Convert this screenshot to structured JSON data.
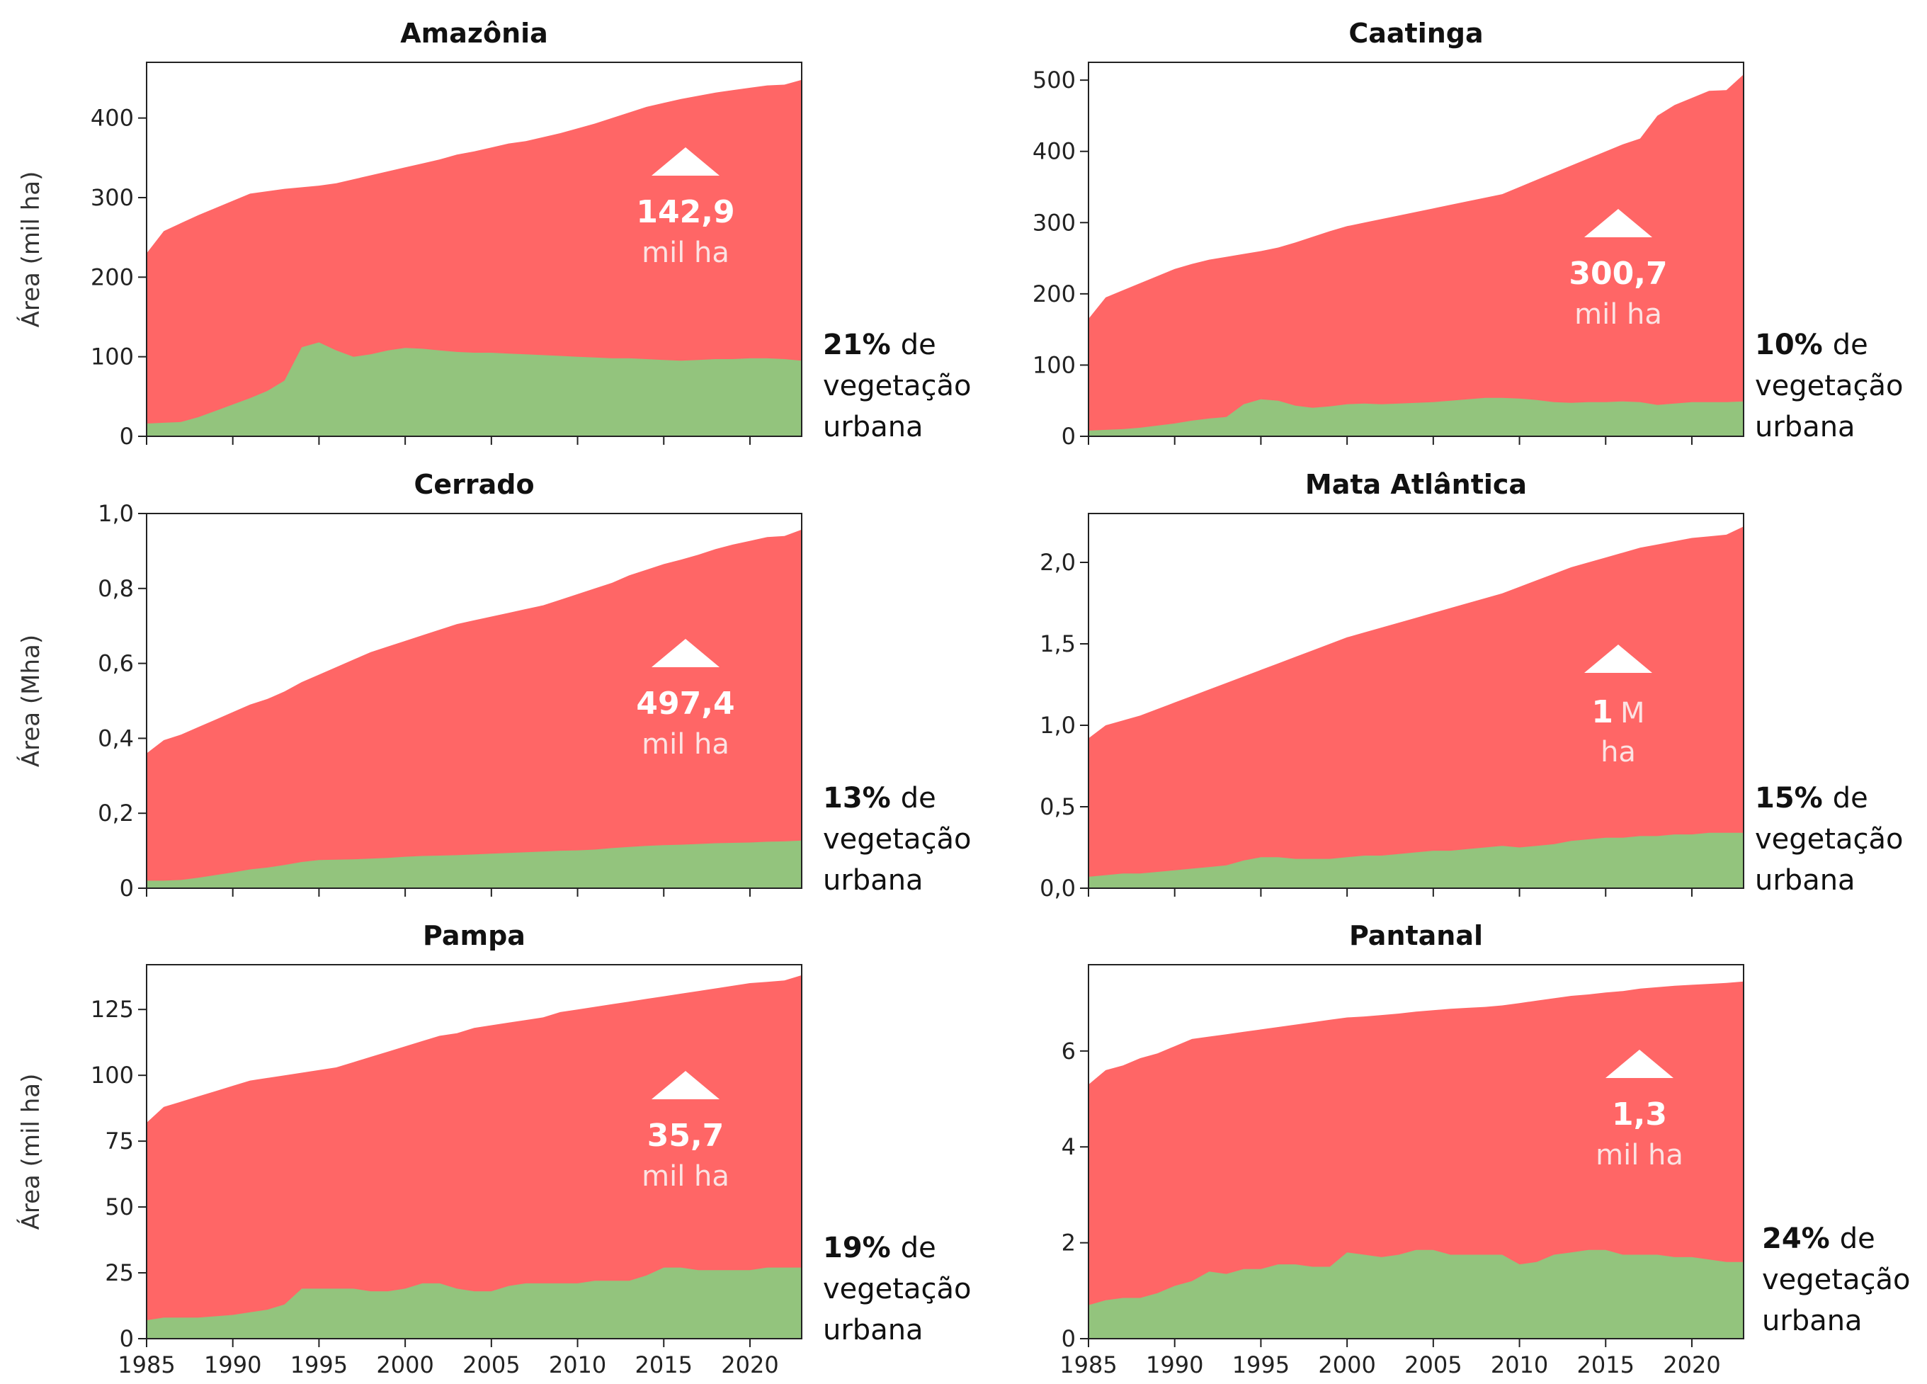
{
  "colors": {
    "total_area": "#ff6666",
    "urban_vegetation": "#93c47d",
    "axis": "#222222",
    "annotation": "#ffffff"
  },
  "chart_data": [
    {
      "type": "area",
      "title": "Amazônia",
      "ylabel": "Área (mil ha)",
      "x": [
        1985,
        1986,
        1987,
        1988,
        1989,
        1990,
        1991,
        1992,
        1993,
        1994,
        1995,
        1996,
        1997,
        1998,
        1999,
        2000,
        2001,
        2002,
        2003,
        2004,
        2005,
        2006,
        2007,
        2008,
        2009,
        2010,
        2011,
        2012,
        2013,
        2014,
        2015,
        2016,
        2017,
        2018,
        2019,
        2020,
        2021,
        2022,
        2023
      ],
      "xlim": [
        1985,
        2023
      ],
      "ylim": [
        0,
        470
      ],
      "yticks": [
        0,
        100,
        200,
        300,
        400
      ],
      "yticklabels": [
        "0",
        "100",
        "200",
        "300",
        "400"
      ],
      "show_xticklabels": false,
      "series": [
        {
          "values": [
            230,
            258,
            268,
            278,
            287,
            296,
            305,
            308,
            311,
            313,
            315,
            318,
            323,
            328,
            333,
            338,
            343,
            348,
            354,
            358,
            363,
            368,
            371,
            376,
            381,
            387,
            393,
            400,
            407,
            414,
            419,
            424,
            428,
            432,
            435,
            438,
            441,
            442,
            448
          ]
        },
        {
          "values": [
            16,
            17,
            18,
            24,
            32,
            40,
            48,
            57,
            70,
            112,
            118,
            108,
            100,
            103,
            108,
            111,
            110,
            108,
            106,
            105,
            105,
            104,
            103,
            102,
            101,
            100,
            99,
            98,
            98,
            97,
            96,
            95,
            96,
            97,
            97,
            98,
            98,
            97,
            95
          ]
        }
      ],
      "annotation": {
        "value": "142,9",
        "unit": "mil ha"
      },
      "share": {
        "pct": "21%",
        "line1": "de",
        "line2": "vegetação",
        "line3": "urbana"
      }
    },
    {
      "type": "area",
      "title": "Caatinga",
      "ylabel": "",
      "x": [
        1985,
        1986,
        1987,
        1988,
        1989,
        1990,
        1991,
        1992,
        1993,
        1994,
        1995,
        1996,
        1997,
        1998,
        1999,
        2000,
        2001,
        2002,
        2003,
        2004,
        2005,
        2006,
        2007,
        2008,
        2009,
        2010,
        2011,
        2012,
        2013,
        2014,
        2015,
        2016,
        2017,
        2018,
        2019,
        2020,
        2021,
        2022,
        2023
      ],
      "xlim": [
        1985,
        2023
      ],
      "ylim": [
        0,
        525
      ],
      "yticks": [
        0,
        100,
        200,
        300,
        400,
        500
      ],
      "yticklabels": [
        "0",
        "100",
        "200",
        "300",
        "400",
        "500"
      ],
      "show_xticklabels": false,
      "series": [
        {
          "values": [
            165,
            195,
            205,
            215,
            225,
            235,
            242,
            248,
            252,
            256,
            260,
            265,
            272,
            280,
            288,
            295,
            300,
            305,
            310,
            315,
            320,
            325,
            330,
            335,
            340,
            350,
            360,
            370,
            380,
            390,
            400,
            410,
            418,
            450,
            465,
            475,
            485,
            486,
            508
          ]
        },
        {
          "values": [
            8,
            9,
            10,
            12,
            15,
            18,
            22,
            25,
            27,
            45,
            52,
            50,
            43,
            40,
            42,
            45,
            46,
            45,
            46,
            47,
            48,
            50,
            52,
            54,
            54,
            53,
            51,
            48,
            47,
            48,
            48,
            49,
            48,
            44,
            46,
            48,
            48,
            48,
            49
          ]
        }
      ],
      "annotation": {
        "value": "300,7",
        "unit": "mil ha"
      },
      "share": {
        "pct": "10%",
        "line1": "de",
        "line2": "vegetação",
        "line3": "urbana"
      }
    },
    {
      "type": "area",
      "title": "Cerrado",
      "ylabel": "Área (Mha)",
      "x": [
        1985,
        1986,
        1987,
        1988,
        1989,
        1990,
        1991,
        1992,
        1993,
        1994,
        1995,
        1996,
        1997,
        1998,
        1999,
        2000,
        2001,
        2002,
        2003,
        2004,
        2005,
        2006,
        2007,
        2008,
        2009,
        2010,
        2011,
        2012,
        2013,
        2014,
        2015,
        2016,
        2017,
        2018,
        2019,
        2020,
        2021,
        2022,
        2023
      ],
      "xlim": [
        1985,
        2023
      ],
      "ylim": [
        0,
        1.0
      ],
      "yticks": [
        0,
        0.2,
        0.4,
        0.6,
        0.8,
        1.0
      ],
      "yticklabels": [
        "0",
        "0,2",
        "0,4",
        "0,6",
        "0,8",
        "1,0"
      ],
      "show_xticklabels": false,
      "series": [
        {
          "values": [
            0.36,
            0.395,
            0.41,
            0.43,
            0.45,
            0.47,
            0.49,
            0.505,
            0.525,
            0.55,
            0.57,
            0.59,
            0.61,
            0.63,
            0.645,
            0.66,
            0.675,
            0.69,
            0.705,
            0.715,
            0.725,
            0.735,
            0.745,
            0.755,
            0.77,
            0.785,
            0.8,
            0.815,
            0.835,
            0.85,
            0.865,
            0.877,
            0.89,
            0.905,
            0.917,
            0.927,
            0.937,
            0.94,
            0.957
          ]
        },
        {
          "values": [
            0.02,
            0.02,
            0.022,
            0.028,
            0.035,
            0.042,
            0.05,
            0.055,
            0.062,
            0.07,
            0.075,
            0.076,
            0.077,
            0.079,
            0.081,
            0.084,
            0.086,
            0.087,
            0.088,
            0.09,
            0.092,
            0.094,
            0.096,
            0.098,
            0.1,
            0.101,
            0.103,
            0.107,
            0.11,
            0.113,
            0.115,
            0.116,
            0.118,
            0.12,
            0.121,
            0.122,
            0.124,
            0.125,
            0.127
          ]
        }
      ],
      "annotation": {
        "value": "497,4",
        "unit": "mil ha"
      },
      "share": {
        "pct": "13%",
        "line1": "de",
        "line2": "vegetação",
        "line3": "urbana"
      }
    },
    {
      "type": "area",
      "title": "Mata Atlântica",
      "ylabel": "",
      "x": [
        1985,
        1986,
        1987,
        1988,
        1989,
        1990,
        1991,
        1992,
        1993,
        1994,
        1995,
        1996,
        1997,
        1998,
        1999,
        2000,
        2001,
        2002,
        2003,
        2004,
        2005,
        2006,
        2007,
        2008,
        2009,
        2010,
        2011,
        2012,
        2013,
        2014,
        2015,
        2016,
        2017,
        2018,
        2019,
        2020,
        2021,
        2022,
        2023
      ],
      "xlim": [
        1985,
        2023
      ],
      "ylim": [
        0,
        2.3
      ],
      "yticks": [
        0,
        0.5,
        1.0,
        1.5,
        2.0
      ],
      "yticklabels": [
        "0,0",
        "0,5",
        "1,0",
        "1,5",
        "2,0"
      ],
      "show_xticklabels": false,
      "series": [
        {
          "values": [
            0.92,
            1.0,
            1.03,
            1.06,
            1.1,
            1.14,
            1.18,
            1.22,
            1.26,
            1.3,
            1.34,
            1.38,
            1.42,
            1.46,
            1.5,
            1.54,
            1.57,
            1.6,
            1.63,
            1.66,
            1.69,
            1.72,
            1.75,
            1.78,
            1.81,
            1.85,
            1.89,
            1.93,
            1.97,
            2.0,
            2.03,
            2.06,
            2.09,
            2.11,
            2.13,
            2.15,
            2.16,
            2.17,
            2.22
          ]
        },
        {
          "values": [
            0.07,
            0.08,
            0.09,
            0.09,
            0.1,
            0.11,
            0.12,
            0.13,
            0.14,
            0.17,
            0.19,
            0.19,
            0.18,
            0.18,
            0.18,
            0.19,
            0.2,
            0.2,
            0.21,
            0.22,
            0.23,
            0.23,
            0.24,
            0.25,
            0.26,
            0.25,
            0.26,
            0.27,
            0.29,
            0.3,
            0.31,
            0.31,
            0.32,
            0.32,
            0.33,
            0.33,
            0.34,
            0.34,
            0.34
          ]
        }
      ],
      "annotation": {
        "value": "1",
        "unit": "M",
        "unit2": "ha"
      },
      "share": {
        "pct": "15%",
        "line1": "de",
        "line2": "vegetação",
        "line3": "urbana"
      }
    },
    {
      "type": "area",
      "title": "Pampa",
      "ylabel": "Área (mil ha)",
      "x": [
        1985,
        1986,
        1987,
        1988,
        1989,
        1990,
        1991,
        1992,
        1993,
        1994,
        1995,
        1996,
        1997,
        1998,
        1999,
        2000,
        2001,
        2002,
        2003,
        2004,
        2005,
        2006,
        2007,
        2008,
        2009,
        2010,
        2011,
        2012,
        2013,
        2014,
        2015,
        2016,
        2017,
        2018,
        2019,
        2020,
        2021,
        2022,
        2023
      ],
      "xlim": [
        1985,
        2023
      ],
      "ylim": [
        0,
        142
      ],
      "yticks": [
        0,
        25,
        50,
        75,
        100,
        125
      ],
      "yticklabels": [
        "0",
        "25",
        "50",
        "75",
        "100",
        "125"
      ],
      "xticks": [
        1985,
        1990,
        1995,
        2000,
        2005,
        2010,
        2015,
        2020
      ],
      "xticklabels": [
        "1985",
        "1990",
        "1995",
        "2000",
        "2005",
        "2010",
        "2015",
        "2020"
      ],
      "show_xticklabels": true,
      "series": [
        {
          "values": [
            82,
            88,
            90,
            92,
            94,
            96,
            98,
            99,
            100,
            101,
            102,
            103,
            105,
            107,
            109,
            111,
            113,
            115,
            116,
            118,
            119,
            120,
            121,
            122,
            124,
            125,
            126,
            127,
            128,
            129,
            130,
            131,
            132,
            133,
            134,
            135,
            135.5,
            136,
            138
          ]
        },
        {
          "values": [
            7,
            8,
            8,
            8,
            8.5,
            9,
            10,
            11,
            13,
            19,
            19,
            19,
            19,
            18,
            18,
            19,
            21,
            21,
            19,
            18,
            18,
            20,
            21,
            21,
            21,
            21,
            22,
            22,
            22,
            24,
            27,
            27,
            26,
            26,
            26,
            26,
            27,
            27,
            27
          ]
        }
      ],
      "annotation": {
        "value": "35,7",
        "unit": "mil ha"
      },
      "share": {
        "pct": "19%",
        "line1": "de",
        "line2": "vegetação",
        "line3": "urbana"
      }
    },
    {
      "type": "area",
      "title": "Pantanal",
      "ylabel": "",
      "x": [
        1985,
        1986,
        1987,
        1988,
        1989,
        1990,
        1991,
        1992,
        1993,
        1994,
        1995,
        1996,
        1997,
        1998,
        1999,
        2000,
        2001,
        2002,
        2003,
        2004,
        2005,
        2006,
        2007,
        2008,
        2009,
        2010,
        2011,
        2012,
        2013,
        2014,
        2015,
        2016,
        2017,
        2018,
        2019,
        2020,
        2021,
        2022,
        2023
      ],
      "xlim": [
        1985,
        2023
      ],
      "ylim": [
        0,
        7.8
      ],
      "yticks": [
        0,
        2,
        4,
        6
      ],
      "yticklabels": [
        "0",
        "2",
        "4",
        "6"
      ],
      "xticks": [
        1985,
        1990,
        1995,
        2000,
        2005,
        2010,
        2015,
        2020
      ],
      "xticklabels": [
        "1985",
        "1990",
        "1995",
        "2000",
        "2005",
        "2010",
        "2015",
        "2020"
      ],
      "show_xticklabels": true,
      "series": [
        {
          "values": [
            5.3,
            5.6,
            5.7,
            5.85,
            5.95,
            6.1,
            6.25,
            6.3,
            6.35,
            6.4,
            6.45,
            6.5,
            6.55,
            6.6,
            6.65,
            6.7,
            6.72,
            6.75,
            6.78,
            6.82,
            6.85,
            6.88,
            6.9,
            6.92,
            6.95,
            7.0,
            7.05,
            7.1,
            7.15,
            7.18,
            7.22,
            7.25,
            7.3,
            7.33,
            7.36,
            7.38,
            7.4,
            7.42,
            7.45
          ]
        },
        {
          "values": [
            0.7,
            0.8,
            0.85,
            0.85,
            0.95,
            1.1,
            1.2,
            1.4,
            1.35,
            1.45,
            1.45,
            1.55,
            1.55,
            1.5,
            1.5,
            1.8,
            1.75,
            1.7,
            1.75,
            1.85,
            1.85,
            1.75,
            1.75,
            1.75,
            1.75,
            1.55,
            1.6,
            1.75,
            1.8,
            1.85,
            1.85,
            1.75,
            1.75,
            1.75,
            1.7,
            1.7,
            1.65,
            1.6,
            1.6
          ]
        }
      ],
      "annotation": {
        "value": "1,3",
        "unit": "mil ha"
      },
      "share": {
        "pct": "24%",
        "line1": "de",
        "line2": "vegetação",
        "line3": "urbana"
      }
    }
  ]
}
